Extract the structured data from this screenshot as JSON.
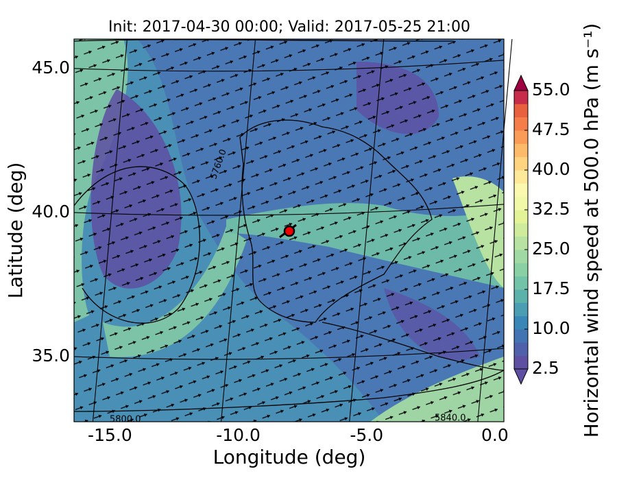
{
  "chart_data": {
    "type": "map",
    "title": "Init: 2017-04-30 00:00; Valid: 2017-05-25 21:00",
    "xlabel": "Longitude (deg)",
    "ylabel": "Latitude (deg)",
    "xlim": [
      -16.4,
      0.35
    ],
    "ylim": [
      32.74,
      46.02
    ],
    "xticks": [
      {
        "value": -15,
        "label": "-15.0"
      },
      {
        "value": -10,
        "label": "-10.0"
      },
      {
        "value": -5,
        "label": "-5.0"
      },
      {
        "value": 0,
        "label": "0.0"
      }
    ],
    "yticks": [
      {
        "value": 35,
        "label": "35.0"
      },
      {
        "value": 40,
        "label": "40.0"
      },
      {
        "value": 45,
        "label": "45.0"
      }
    ],
    "grid": true,
    "contour_labels": [
      "5760.0",
      "5800.0",
      "5840.0"
    ],
    "colorbar": {
      "label": "Horizontal wind speed at 500.0 hPa (m s⁻¹)",
      "lim": [
        2.5,
        55
      ],
      "ticks": [
        {
          "value": 2.5,
          "label": "2.5"
        },
        {
          "value": 10,
          "label": "10.0"
        },
        {
          "value": 17.5,
          "label": "17.5"
        },
        {
          "value": 25,
          "label": "25.0"
        },
        {
          "value": 32.5,
          "label": "32.5"
        },
        {
          "value": 40,
          "label": "40.0"
        },
        {
          "value": 47.5,
          "label": "47.5"
        },
        {
          "value": 55,
          "label": "55.0"
        }
      ],
      "colors": [
        "#5e4fa2",
        "#4f61aa",
        "#4273b3",
        "#3a86b7",
        "#4b9db4",
        "#5cb1ab",
        "#72c3a7",
        "#89d0a4",
        "#a0d9a4",
        "#b8e2a1",
        "#cfec9d",
        "#e2f398",
        "#f1f9a9",
        "#fbf8b0",
        "#fee99a",
        "#fed481",
        "#fdba6b",
        "#fa9b58",
        "#f57d4a",
        "#e8603d",
        "#c72d4a"
      ],
      "under_color": "#5e4fa2",
      "over_color": "#9e0142"
    }
  }
}
